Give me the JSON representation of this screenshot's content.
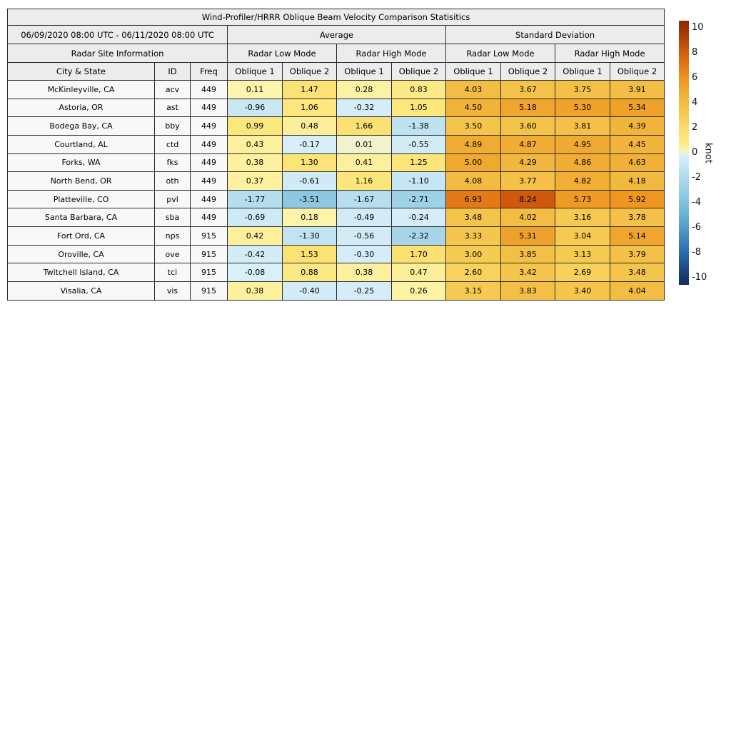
{
  "title": "Wind-Profiler/HRRR Oblique Beam Velocity Comparison Statisitics",
  "header": {
    "period": "06/09/2020 08:00 UTC - 06/11/2020 08:00 UTC",
    "average": "Average",
    "std_deviation": "Standard Deviation",
    "site_info": "Radar Site Information",
    "low_mode": "Radar Low Mode",
    "high_mode": "Radar High Mode",
    "col_city": "City & State",
    "col_id": "ID",
    "col_freq": "Freq",
    "col_oblique1": "Oblique 1",
    "col_oblique2": "Oblique 2"
  },
  "colors": {
    "header_bg": "#ececec",
    "site_cell_bg": "#f8f8f8",
    "border": "#2b2b2b",
    "text": "#000000",
    "background": "#ffffff"
  },
  "colorbar": {
    "unit": "knot",
    "ticks": [
      10,
      8,
      6,
      4,
      2,
      0,
      -2,
      -4,
      -6,
      -8,
      -10
    ],
    "tick_range": [
      -10,
      10
    ],
    "bar_range": [
      -10.6,
      10.6
    ],
    "color_stops": [
      [
        -10.6,
        "#132f60"
      ],
      [
        -10.0,
        "#16386b"
      ],
      [
        -8.0,
        "#2c6cae"
      ],
      [
        -6.0,
        "#549dc8"
      ],
      [
        -4.0,
        "#82c2dc"
      ],
      [
        -2.0,
        "#aedaec"
      ],
      [
        -1.0,
        "#c9e7f4"
      ],
      [
        -0.04,
        "#daeffa"
      ],
      [
        0.04,
        "#fdf6b1"
      ],
      [
        1.0,
        "#fce77e"
      ],
      [
        2.0,
        "#fbdd6d"
      ],
      [
        3.0,
        "#f6cb52"
      ],
      [
        4.0,
        "#f3bd44"
      ],
      [
        5.0,
        "#f0a930"
      ],
      [
        6.0,
        "#ee941f"
      ],
      [
        8.0,
        "#d85d0d"
      ],
      [
        10.0,
        "#963104"
      ],
      [
        10.6,
        "#8a2b03"
      ]
    ]
  },
  "chart_data": {
    "type": "heatmap-table",
    "title": "Wind-Profiler/HRRR Oblique Beam Velocity Comparison Statisitics",
    "period": "06/09/2020 08:00 UTC - 06/11/2020 08:00 UTC",
    "unit": "knot",
    "color_scale_range": [
      -10,
      10
    ],
    "row_header_columns": [
      "City & State",
      "ID",
      "Freq"
    ],
    "value_column_groups": [
      {
        "group": "Average",
        "mode": "Radar Low Mode",
        "columns": [
          "Oblique 1",
          "Oblique 2"
        ]
      },
      {
        "group": "Average",
        "mode": "Radar High Mode",
        "columns": [
          "Oblique 1",
          "Oblique 2"
        ]
      },
      {
        "group": "Standard Deviation",
        "mode": "Radar Low Mode",
        "columns": [
          "Oblique 1",
          "Oblique 2"
        ]
      },
      {
        "group": "Standard Deviation",
        "mode": "Radar High Mode",
        "columns": [
          "Oblique 1",
          "Oblique 2"
        ]
      }
    ],
    "rows": [
      {
        "city": "McKinleyville, CA",
        "id": "acv",
        "freq": "449",
        "values": [
          0.11,
          1.47,
          0.28,
          0.83,
          4.03,
          3.67,
          3.75,
          3.91
        ]
      },
      {
        "city": "Astoria, OR",
        "id": "ast",
        "freq": "449",
        "values": [
          -0.96,
          1.06,
          -0.32,
          1.05,
          4.5,
          5.18,
          5.3,
          5.34
        ]
      },
      {
        "city": "Bodega Bay, CA",
        "id": "bby",
        "freq": "449",
        "values": [
          0.99,
          0.48,
          1.66,
          -1.38,
          3.5,
          3.6,
          3.81,
          4.39
        ]
      },
      {
        "city": "Courtland, AL",
        "id": "ctd",
        "freq": "449",
        "values": [
          0.43,
          -0.17,
          0.01,
          -0.55,
          4.89,
          4.87,
          4.95,
          4.45
        ]
      },
      {
        "city": "Forks, WA",
        "id": "fks",
        "freq": "449",
        "values": [
          0.38,
          1.3,
          0.41,
          1.25,
          5.0,
          4.29,
          4.86,
          4.63
        ]
      },
      {
        "city": "North Bend, OR",
        "id": "oth",
        "freq": "449",
        "values": [
          0.37,
          -0.61,
          1.16,
          -1.1,
          4.08,
          3.77,
          4.82,
          4.18
        ]
      },
      {
        "city": "Platteville, CO",
        "id": "pvl",
        "freq": "449",
        "values": [
          -1.77,
          -3.51,
          -1.67,
          -2.71,
          6.93,
          8.24,
          5.73,
          5.92
        ]
      },
      {
        "city": "Santa Barbara, CA",
        "id": "sba",
        "freq": "449",
        "values": [
          -0.69,
          0.18,
          -0.49,
          -0.24,
          3.48,
          4.02,
          3.16,
          3.78
        ]
      },
      {
        "city": "Fort Ord, CA",
        "id": "nps",
        "freq": "915",
        "values": [
          0.42,
          -1.3,
          -0.56,
          -2.32,
          3.33,
          5.31,
          3.04,
          5.14
        ]
      },
      {
        "city": "Oroville, CA",
        "id": "ove",
        "freq": "915",
        "values": [
          -0.42,
          1.53,
          -0.3,
          1.7,
          3.0,
          3.85,
          3.13,
          3.79
        ]
      },
      {
        "city": "Twitchell Island, CA",
        "id": "tci",
        "freq": "915",
        "values": [
          -0.08,
          0.88,
          0.38,
          0.47,
          2.6,
          3.42,
          2.69,
          3.48
        ]
      },
      {
        "city": "Visalia, CA",
        "id": "vis",
        "freq": "915",
        "values": [
          0.38,
          -0.4,
          -0.25,
          0.26,
          3.15,
          3.83,
          3.4,
          4.04
        ]
      }
    ]
  }
}
